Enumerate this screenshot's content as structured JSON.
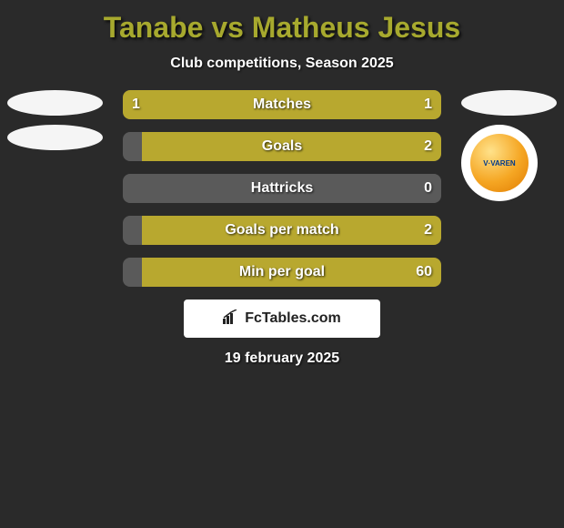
{
  "title": "Tanabe vs Matheus Jesus",
  "title_color": "#a7a92e",
  "subtitle": "Club competitions, Season 2025",
  "background_color": "#2a2a2a",
  "bar_neutral_color": "#5a5a5a",
  "bar_accent_color": "#b8a82f",
  "bar_radius": 8,
  "rows": [
    {
      "label": "Matches",
      "left": "1",
      "right": "1",
      "left_pct": 50,
      "right_pct": 50
    },
    {
      "label": "Goals",
      "left": "",
      "right": "2",
      "left_pct": 6,
      "right_pct": 94
    },
    {
      "label": "Hattricks",
      "left": "",
      "right": "0",
      "left_pct": 50,
      "right_pct": 50,
      "all_neutral": true
    },
    {
      "label": "Goals per match",
      "left": "",
      "right": "2",
      "left_pct": 6,
      "right_pct": 94
    },
    {
      "label": "Min per goal",
      "left": "",
      "right": "60",
      "left_pct": 6,
      "right_pct": 94
    }
  ],
  "left_badges": {
    "ellipse_color": "#f5f5f5",
    "count": 2
  },
  "right_badges": {
    "ellipse_color": "#f5f5f5",
    "team_badge_bg": "#ffffff",
    "team_badge_text": "V·VAREN",
    "team_badge_inner_a": "#f5a623",
    "team_badge_inner_b": "#003a8c"
  },
  "logo_text": "FcTables.com",
  "date": "19 february 2025",
  "fonts": {
    "title_size": 32,
    "subtitle_size": 16,
    "bar_label_size": 16,
    "bar_val_size": 16
  }
}
